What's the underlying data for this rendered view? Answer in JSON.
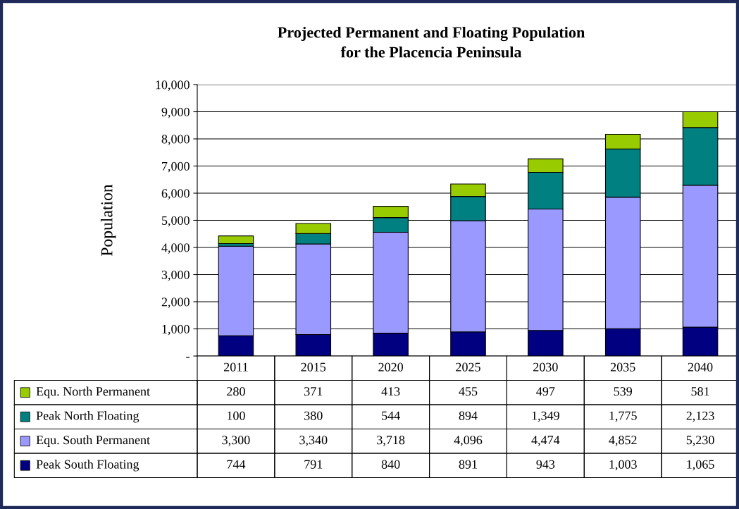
{
  "chart_data": {
    "type": "bar",
    "stacked": true,
    "title": "Projected Permanent and Floating Population\nfor the Placencia Peninsula",
    "ylabel": "Population",
    "categories": [
      "2011",
      "2015",
      "2020",
      "2025",
      "2030",
      "2035",
      "2040"
    ],
    "series": [
      {
        "name": "Peak South Floating",
        "color": "#000080",
        "values": [
          744,
          791,
          840,
          891,
          943,
          1003,
          1065
        ],
        "value_labels": [
          "744",
          "791",
          "840",
          "891",
          "943",
          "1,003",
          "1,065"
        ]
      },
      {
        "name": "Equ. South Permanent",
        "color": "#9999ff",
        "values": [
          3300,
          3340,
          3718,
          4096,
          4474,
          4852,
          5230
        ],
        "value_labels": [
          "3,300",
          "3,340",
          "3,718",
          "4,096",
          "4,474",
          "4,852",
          "5,230"
        ]
      },
      {
        "name": "Peak North Floating",
        "color": "#008080",
        "values": [
          100,
          380,
          544,
          894,
          1349,
          1775,
          2123
        ],
        "value_labels": [
          "100",
          "380",
          "544",
          "894",
          "1,349",
          "1,775",
          "2,123"
        ]
      },
      {
        "name": "Equ. North Permanent",
        "color": "#99cc00",
        "values": [
          280,
          371,
          413,
          455,
          497,
          539,
          581
        ],
        "value_labels": [
          "280",
          "371",
          "413",
          "455",
          "497",
          "539",
          "581"
        ]
      }
    ],
    "ylim": [
      0,
      10000
    ],
    "yticks": [
      {
        "value": 0,
        "label": "-"
      },
      {
        "value": 1000,
        "label": "1,000"
      },
      {
        "value": 2000,
        "label": "2,000"
      },
      {
        "value": 3000,
        "label": "3,000"
      },
      {
        "value": 4000,
        "label": "4,000"
      },
      {
        "value": 5000,
        "label": "5,000"
      },
      {
        "value": 6000,
        "label": "6,000"
      },
      {
        "value": 7000,
        "label": "7,000"
      },
      {
        "value": 8000,
        "label": "8,000"
      },
      {
        "value": 9000,
        "label": "9,000"
      },
      {
        "value": 10000,
        "label": "10,000"
      }
    ],
    "grid": "y",
    "legend": "bottom"
  }
}
